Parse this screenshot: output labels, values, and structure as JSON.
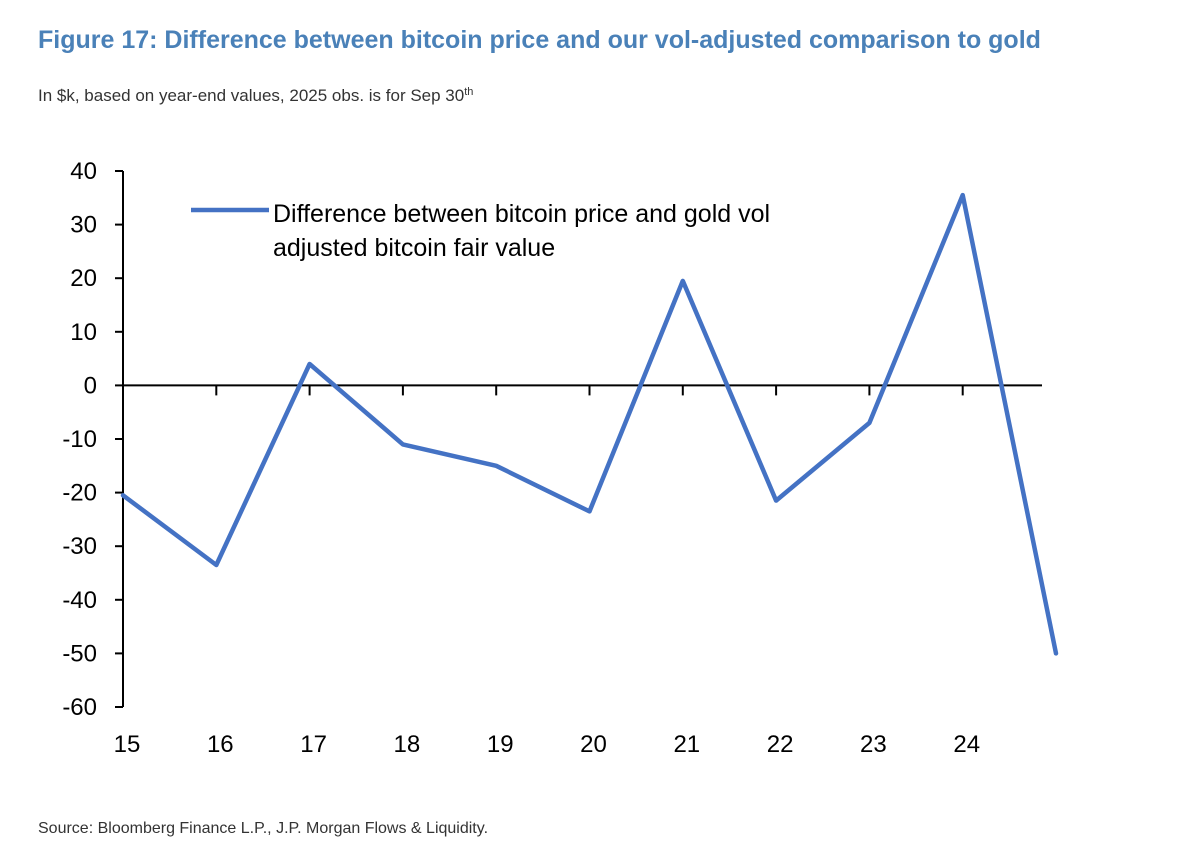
{
  "figure": {
    "title": "Figure 17: Difference between bitcoin price and our vol-adjusted comparison to gold",
    "subtitle": "In $k, based on year-end values, 2025 obs. is for Sep 30",
    "subtitle_sup": "th",
    "source": "Source: Bloomberg Finance L.P., J.P. Morgan Flows & Liquidity."
  },
  "chart_data": {
    "type": "line",
    "title": "Figure 17: Difference between bitcoin price and our vol-adjusted comparison to gold",
    "subtitle": "In $k, based on year-end values, 2025 obs. is for Sep 30th",
    "xlabel": "",
    "ylabel": "",
    "x": [
      15,
      16,
      17,
      18,
      19,
      20,
      21,
      22,
      23,
      24,
      25
    ],
    "x_tick_labels": [
      "15",
      "16",
      "17",
      "18",
      "19",
      "20",
      "21",
      "22",
      "23",
      "24"
    ],
    "ylim": [
      -60,
      40
    ],
    "y_ticks": [
      40,
      30,
      20,
      10,
      0,
      -10,
      -20,
      -30,
      -40,
      -50,
      -60
    ],
    "y_tick_labels": [
      "40",
      "30",
      "20",
      "10",
      "0",
      "-10",
      "-20",
      "-30",
      "-40",
      "-50",
      "-60"
    ],
    "grid": false,
    "legend_position": "top-left",
    "legend_lines": [
      "Difference between bitcoin price and gold vol",
      "adjusted bitcoin fair value"
    ],
    "series": [
      {
        "name": "Difference between bitcoin price and gold vol adjusted bitcoin fair value",
        "color": "#4472c4",
        "values": [
          -20.5,
          -33.5,
          4.0,
          -11.0,
          -15.0,
          -23.5,
          19.5,
          -21.5,
          -7.0,
          35.5,
          -50.0
        ]
      }
    ]
  }
}
